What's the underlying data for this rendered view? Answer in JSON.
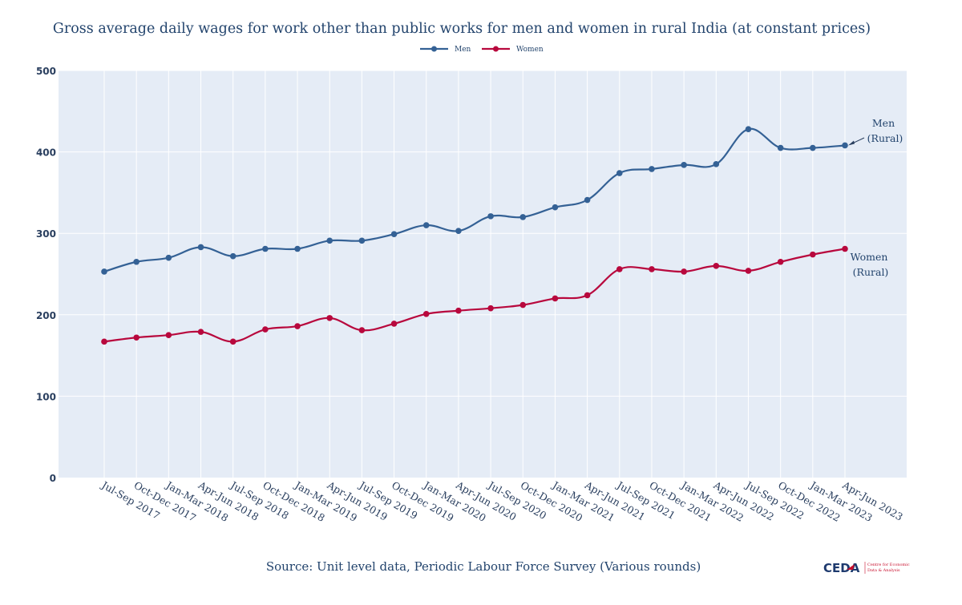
{
  "chart_data": {
    "type": "line",
    "title": "Gross average daily wages for work other than public works for men and women in rural India (at constant prices)",
    "xlabel": "",
    "ylabel": "",
    "ylim": [
      0,
      500
    ],
    "yticks": [
      0,
      100,
      200,
      300,
      400,
      500
    ],
    "grid": true,
    "legend_position": "top-center",
    "categories": [
      "Jul-Sep 2017",
      "Oct-Dec 2017",
      "Jan-Mar 2018",
      "Apr-Jun 2018",
      "Jul-Sep 2018",
      "Oct-Dec 2018",
      "Jan-Mar 2019",
      "Apr-Jun 2019",
      "Jul-Sep 2019",
      "Oct-Dec 2019",
      "Jan-Mar 2020",
      "Apr-Jun 2020",
      "Jul-Sep 2020",
      "Oct-Dec 2020",
      "Jan-Mar 2021",
      "Apr-Jun 2021",
      "Jul-Sep 2021",
      "Oct-Dec 2021",
      "Jan-Mar 2022",
      "Apr-Jun 2022",
      "Jul-Sep 2022",
      "Oct-Dec 2022",
      "Jan-Mar 2023",
      "Apr-Jun 2023"
    ],
    "series": [
      {
        "name": "Men",
        "color": "#346195",
        "values": [
          253,
          265,
          270,
          283,
          272,
          281,
          281,
          291,
          291,
          299,
          310,
          303,
          321,
          320,
          332,
          341,
          374,
          379,
          384,
          385,
          428,
          405,
          405,
          408
        ]
      },
      {
        "name": "Women",
        "color": "#b8083d",
        "values": [
          167,
          172,
          175,
          179,
          167,
          182,
          186,
          196,
          181,
          189,
          201,
          205,
          208,
          212,
          220,
          224,
          256,
          256,
          253,
          260,
          254,
          265,
          274,
          281
        ]
      }
    ],
    "annotations": [
      {
        "series": "Men",
        "lines": [
          "Men",
          "(Rural)"
        ],
        "arrow": true
      },
      {
        "series": "Women",
        "lines": [
          "Women",
          "(Rural)"
        ],
        "arrow": false
      }
    ],
    "source": "Source: Unit level data, Periodic Labour Force Survey (Various rounds)"
  },
  "logo": {
    "name": "CEDA",
    "subtitle_line1": "Centre for Economic",
    "subtitle_line2": "Data & Analysis",
    "color_main": "#1e3a6e",
    "color_accent": "#c8102e"
  },
  "colors": {
    "plot_bg": "#e5ecf6",
    "grid": "#ffffff",
    "text": "#23446d"
  }
}
